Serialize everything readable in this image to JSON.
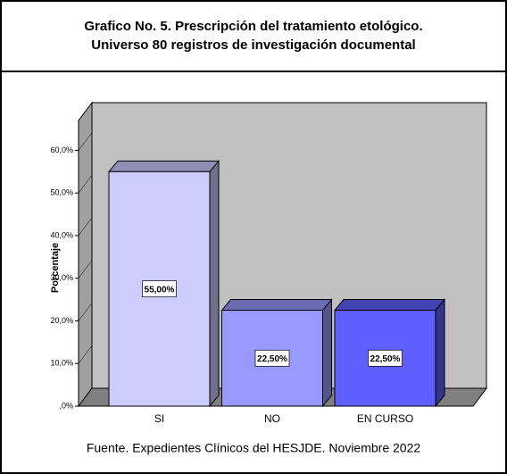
{
  "chart_data": {
    "type": "bar3d",
    "title": "Grafico No. 5. Prescripción del tratamiento etológico.",
    "subtitle": "Universo 80 registros de investigación documental",
    "y_label": "Porcentaje",
    "footer": "Fuente. Expedientes Clínicos del HESJDE. Noviembre 2022",
    "categories": [
      "SI",
      "NO",
      "EN CURSO"
    ],
    "values": [
      55,
      22.5,
      22.5
    ],
    "value_labels": [
      "55,00%",
      "22,50%",
      "22,50%"
    ],
    "colors": [
      "#ccccff",
      "#9999ff",
      "#5f5fff"
    ],
    "ylim": [
      0,
      67
    ],
    "yticks": [
      {
        "value": 0,
        "label": ",0%"
      },
      {
        "value": 10,
        "label": "10,0%"
      },
      {
        "value": 20,
        "label": "20,0%"
      },
      {
        "value": 30,
        "label": "30,0%"
      },
      {
        "value": 40,
        "label": "40,0%"
      },
      {
        "value": 50,
        "label": "50,0%"
      },
      {
        "value": 60,
        "label": "60,0%"
      }
    ]
  }
}
